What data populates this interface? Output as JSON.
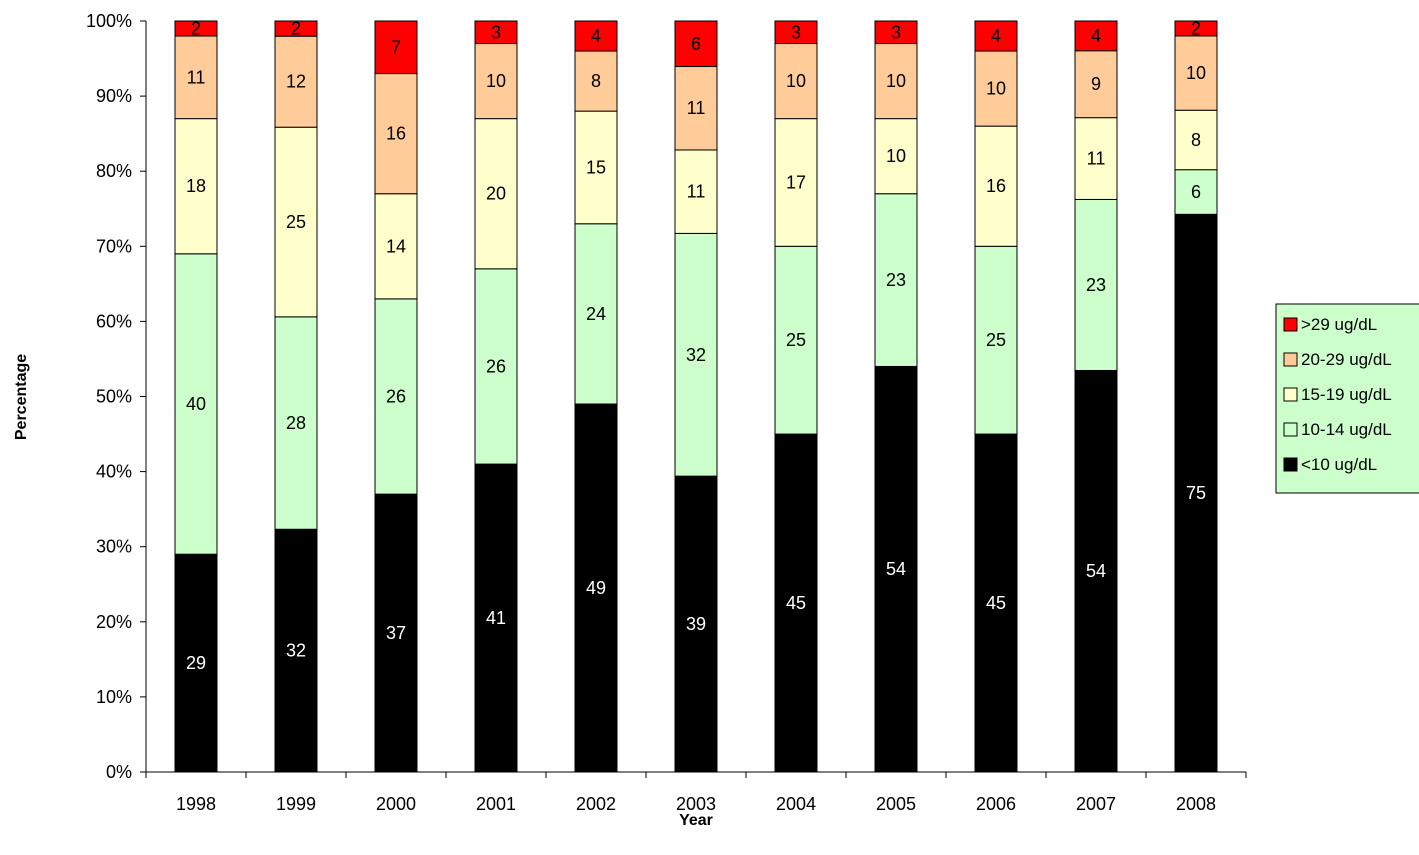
{
  "chart_data": {
    "type": "bar",
    "stacked": true,
    "normalized": true,
    "title": "",
    "xlabel": "Year",
    "ylabel": "Percentage",
    "ylim": [
      0,
      100
    ],
    "yticks": [
      "0%",
      "10%",
      "20%",
      "30%",
      "40%",
      "50%",
      "60%",
      "70%",
      "80%",
      "90%",
      "100%"
    ],
    "categories": [
      "1998",
      "1999",
      "2000",
      "2001",
      "2002",
      "2003",
      "2004",
      "2005",
      "2006",
      "2007",
      "2008"
    ],
    "series": [
      {
        "name": "<10 ug/dL",
        "color": "#000000",
        "label_color": "#ffffff",
        "values": [
          29,
          32,
          37,
          41,
          49,
          39,
          45,
          54,
          45,
          54,
          75
        ]
      },
      {
        "name": "10-14 ug/dL",
        "color": "#ccffcc",
        "label_color": "#000000",
        "values": [
          40,
          28,
          26,
          26,
          24,
          32,
          25,
          23,
          25,
          23,
          6
        ]
      },
      {
        "name": "15-19 ug/dL",
        "color": "#ffffcc",
        "label_color": "#000000",
        "values": [
          18,
          25,
          14,
          20,
          15,
          11,
          17,
          10,
          16,
          11,
          8
        ]
      },
      {
        "name": "20-29 ug/dL",
        "color": "#ffcc99",
        "label_color": "#000000",
        "values": [
          11,
          12,
          16,
          10,
          8,
          11,
          10,
          10,
          10,
          9,
          10
        ]
      },
      {
        "name": ">29 ug/dL",
        "color": "#ff0000",
        "label_color": "#000000",
        "values": [
          2,
          2,
          7,
          3,
          4,
          6,
          3,
          3,
          4,
          4,
          2
        ]
      }
    ],
    "legend": {
      "placement": "right",
      "background": "#ccffcc",
      "order": [
        ">29 ug/dL",
        "20-29 ug/dL",
        "15-19 ug/dL",
        "10-14 ug/dL",
        "<10 ug/dL"
      ]
    },
    "grid": false
  }
}
